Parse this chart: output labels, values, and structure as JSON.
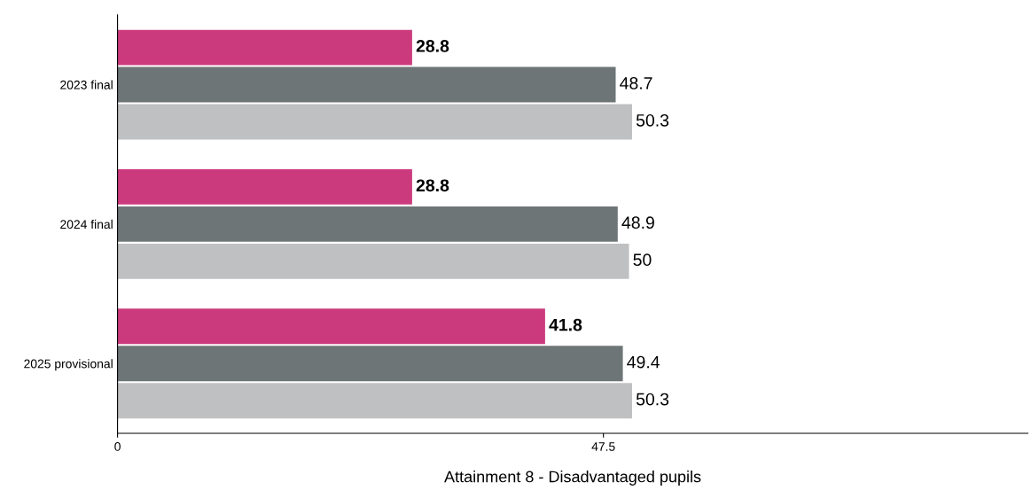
{
  "chart_data": {
    "type": "bar",
    "orientation": "horizontal",
    "xlabel": "Attainment 8 - Disadvantaged pupils",
    "categories": [
      "2023 final",
      "2024 final",
      "2025 provisional"
    ],
    "series": [
      {
        "color": "#cc3a7e",
        "values": [
          28.8,
          28.8,
          41.8
        ]
      },
      {
        "color": "#6e7577",
        "values": [
          48.7,
          48.9,
          49.4
        ]
      },
      {
        "color": "#bfc0c2",
        "values": [
          50.3,
          50,
          50.3
        ]
      }
    ],
    "xlim": [
      0,
      89
    ],
    "xticks": [
      0,
      47.5
    ],
    "data_labels": true,
    "grid": false
  }
}
